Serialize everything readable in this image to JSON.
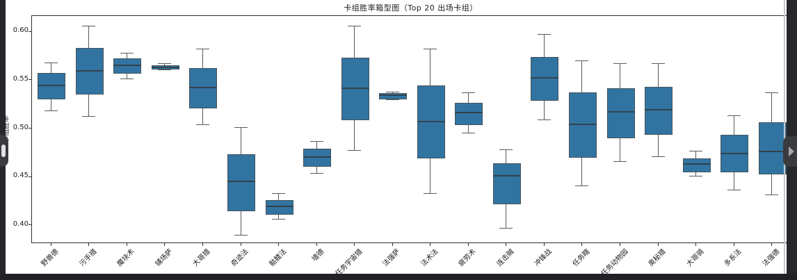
{
  "window": {
    "frame_color": "#25272a",
    "bottom_bar_color": "#202225",
    "panel_color": "#ffffff",
    "scroll_line_color": "#c6c8ca",
    "handle_color": "#3a3b3f",
    "handle_pill_color": "#e2e2e2",
    "handle_arrow_color": "#a6a8aa"
  },
  "chart_data": {
    "type": "boxplot",
    "title": "卡组胜率箱型图（Top 20 出场卡组）",
    "xlabel": "",
    "ylabel": "卡组胜率",
    "ylim": [
      0.382,
      0.616
    ],
    "yticks": [
      0.4,
      0.45,
      0.5,
      0.55,
      0.6
    ],
    "ytick_labels": [
      "0.40",
      "0.45",
      "0.50",
      "0.55",
      "0.60"
    ],
    "grid": false,
    "legend": null,
    "colors": {
      "box_fill": "#3274a1",
      "box_edge": "#44535e",
      "median": "#33424d",
      "whisker": "#595959",
      "spine": "#2e2e2e",
      "text": "#1c1c1c"
    },
    "boxes": [
      {
        "label": "野兽德",
        "whislo": 0.518,
        "q1": 0.531,
        "med": 0.544,
        "q3": 0.557,
        "whishi": 0.568
      },
      {
        "label": "污手猎",
        "whislo": 0.512,
        "q1": 0.536,
        "med": 0.559,
        "q3": 0.583,
        "whishi": 0.606
      },
      {
        "label": "魔块术",
        "whislo": 0.551,
        "q1": 0.558,
        "med": 0.565,
        "q3": 0.572,
        "whishi": 0.578
      },
      {
        "label": "铺场萨",
        "whislo": 0.56,
        "q1": 0.562,
        "med": 0.563,
        "q3": 0.565,
        "whishi": 0.567
      },
      {
        "label": "大哥猎",
        "whislo": 0.503,
        "q1": 0.522,
        "med": 0.542,
        "q3": 0.562,
        "whishi": 0.582
      },
      {
        "label": "奇迹法",
        "whislo": 0.389,
        "q1": 0.416,
        "med": 0.445,
        "q3": 0.473,
        "whishi": 0.501
      },
      {
        "label": "骷髅法",
        "whislo": 0.406,
        "q1": 0.412,
        "med": 0.419,
        "q3": 0.426,
        "whishi": 0.433
      },
      {
        "label": "墙德",
        "whislo": 0.453,
        "q1": 0.462,
        "med": 0.47,
        "q3": 0.479,
        "whishi": 0.487
      },
      {
        "label": "任务宇宙猎",
        "whislo": 0.477,
        "q1": 0.51,
        "med": 0.541,
        "q3": 0.573,
        "whishi": 0.606
      },
      {
        "label": "法强萨",
        "whislo": 0.529,
        "q1": 0.531,
        "med": 0.534,
        "q3": 0.536,
        "whishi": 0.538
      },
      {
        "label": "法术法",
        "whislo": 0.432,
        "q1": 0.47,
        "med": 0.507,
        "q3": 0.544,
        "whishi": 0.582
      },
      {
        "label": "疲劳术",
        "whislo": 0.495,
        "q1": 0.505,
        "med": 0.516,
        "q3": 0.526,
        "whishi": 0.537
      },
      {
        "label": "连击贼",
        "whislo": 0.396,
        "q1": 0.423,
        "med": 0.451,
        "q3": 0.464,
        "whishi": 0.478
      },
      {
        "label": "冲锋战",
        "whislo": 0.508,
        "q1": 0.53,
        "med": 0.552,
        "q3": 0.574,
        "whishi": 0.597
      },
      {
        "label": "任务瞎",
        "whislo": 0.44,
        "q1": 0.471,
        "med": 0.504,
        "q3": 0.537,
        "whishi": 0.57
      },
      {
        "label": "任务动物园",
        "whislo": 0.465,
        "q1": 0.491,
        "med": 0.517,
        "q3": 0.541,
        "whishi": 0.567
      },
      {
        "label": "奥秘猎",
        "whislo": 0.47,
        "q1": 0.495,
        "med": 0.519,
        "q3": 0.543,
        "whishi": 0.567
      },
      {
        "label": "大哥骑",
        "whislo": 0.45,
        "q1": 0.456,
        "med": 0.463,
        "q3": 0.469,
        "whishi": 0.477
      },
      {
        "label": "多系法",
        "whislo": 0.436,
        "q1": 0.456,
        "med": 0.474,
        "q3": 0.493,
        "whishi": 0.513
      },
      {
        "label": "法强德",
        "whislo": 0.431,
        "q1": 0.454,
        "med": 0.476,
        "q3": 0.506,
        "whishi": 0.537
      }
    ]
  }
}
